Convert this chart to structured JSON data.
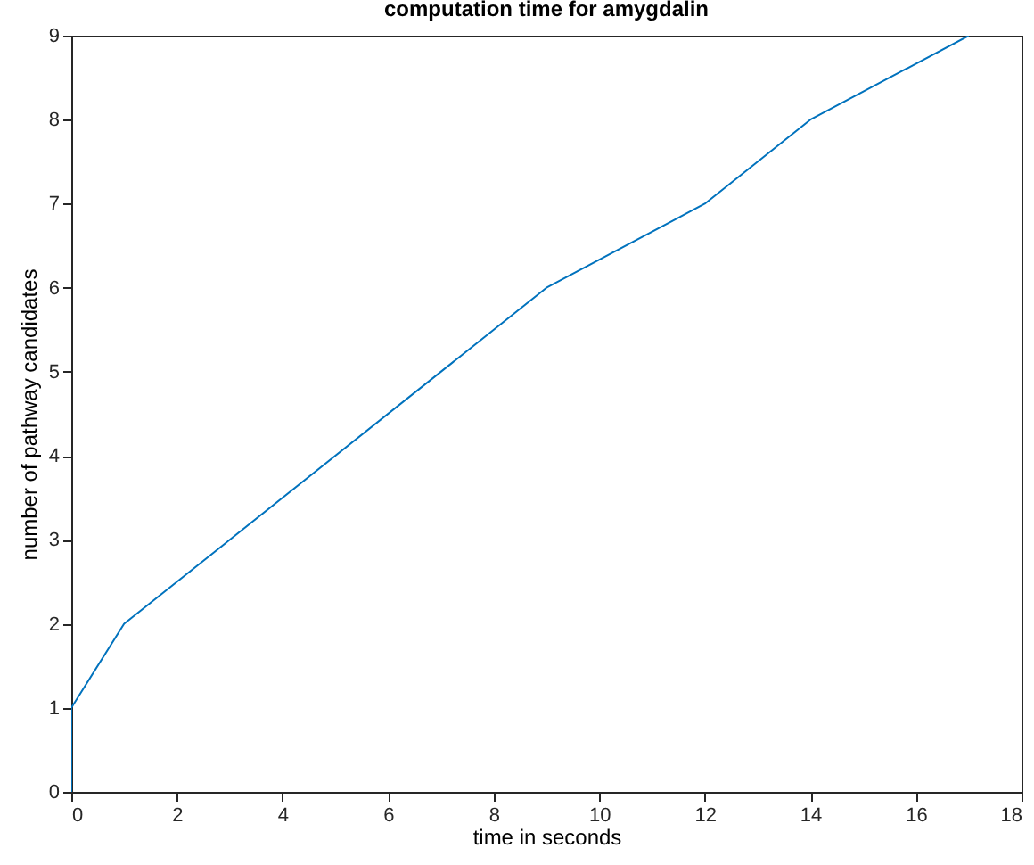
{
  "chart_data": {
    "type": "line",
    "title": "computation time for amygdalin",
    "xlabel": "time in seconds",
    "ylabel": "number of pathway candidates",
    "series": [
      {
        "color": "#0072bd",
        "x": [
          0,
          0,
          1,
          9,
          12,
          14,
          17
        ],
        "values": [
          0,
          1,
          2,
          6,
          7,
          8,
          9
        ]
      }
    ],
    "xlim": [
      0,
      18
    ],
    "xticks": [
      0,
      2,
      4,
      6,
      8,
      10,
      12,
      14,
      16,
      18
    ],
    "ylim": [
      0,
      9
    ],
    "yticks": [
      0,
      1,
      2,
      3,
      4,
      5,
      6,
      7,
      8,
      9
    ],
    "grid": false,
    "marker": "none",
    "line_style": "solid"
  }
}
